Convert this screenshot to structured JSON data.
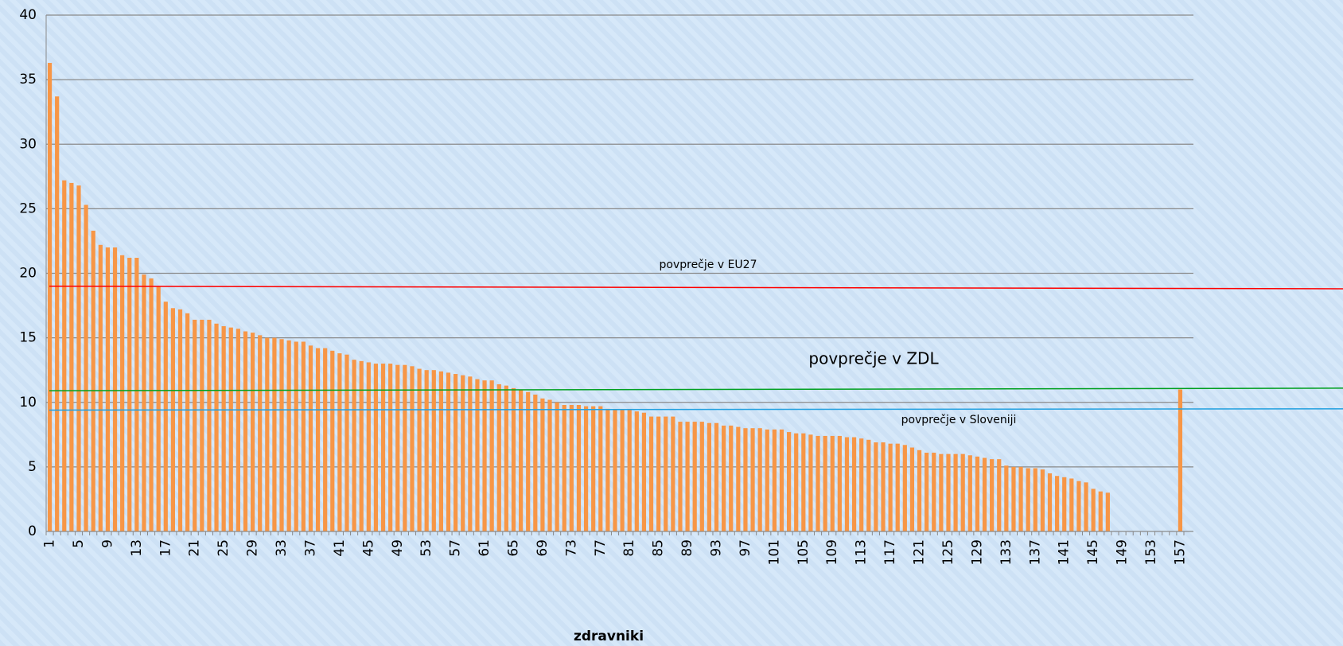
{
  "chart_data": {
    "type": "bar",
    "x_label": "zdravniki",
    "categories": [
      "1",
      null,
      null,
      null,
      "5",
      null,
      null,
      null,
      "9",
      null,
      null,
      null,
      "13",
      null,
      null,
      null,
      "17",
      null,
      null,
      null,
      "21",
      null,
      null,
      null,
      "25",
      null,
      null,
      null,
      "29",
      null,
      null,
      null,
      "33",
      null,
      null,
      null,
      "37",
      null,
      null,
      null,
      "41",
      null,
      null,
      null,
      "45",
      null,
      null,
      null,
      "49",
      null,
      null,
      null,
      "53",
      null,
      null,
      null,
      "57",
      null,
      null,
      null,
      "61",
      null,
      null,
      null,
      "65",
      null,
      null,
      null,
      "69",
      null,
      null,
      null,
      "73",
      null,
      null,
      null,
      "77",
      null,
      null,
      null,
      "81",
      null,
      null,
      null,
      "85",
      null,
      null,
      null,
      "89",
      null,
      null,
      null,
      "93",
      null,
      null,
      null,
      "97",
      null,
      null,
      null,
      "101",
      null,
      null,
      null,
      "105",
      null,
      null,
      null,
      "109",
      null,
      null,
      null,
      "113",
      null,
      null,
      null,
      "117",
      null,
      null,
      null,
      "121",
      null,
      null,
      null,
      "125",
      null,
      null,
      null,
      "129",
      null,
      null,
      null,
      "133",
      null,
      null,
      null,
      "137",
      null,
      null,
      null,
      "141",
      null,
      null,
      null,
      "145",
      null,
      null,
      null,
      "149",
      null,
      null,
      null,
      "153",
      null,
      null,
      null,
      "157"
    ],
    "values": [
      36.3,
      33.7,
      27.2,
      27.0,
      26.8,
      25.3,
      23.3,
      22.2,
      22.0,
      22.0,
      21.4,
      21.2,
      21.2,
      19.9,
      19.6,
      19.0,
      17.8,
      17.3,
      17.2,
      16.9,
      16.4,
      16.4,
      16.4,
      16.1,
      15.9,
      15.8,
      15.7,
      15.5,
      15.4,
      15.2,
      15.0,
      15.0,
      14.9,
      14.8,
      14.7,
      14.7,
      14.4,
      14.2,
      14.2,
      14.0,
      13.8,
      13.7,
      13.3,
      13.2,
      13.1,
      13.0,
      13.0,
      13.0,
      12.9,
      12.9,
      12.8,
      12.6,
      12.5,
      12.5,
      12.4,
      12.3,
      12.2,
      12.1,
      12.0,
      11.8,
      11.7,
      11.7,
      11.4,
      11.3,
      11.1,
      11.0,
      10.8,
      10.6,
      10.3,
      10.2,
      10.0,
      9.8,
      9.8,
      9.8,
      9.7,
      9.7,
      9.7,
      9.5,
      9.4,
      9.4,
      9.4,
      9.3,
      9.2,
      8.9,
      8.9,
      8.9,
      8.9,
      8.5,
      8.5,
      8.5,
      8.5,
      8.4,
      8.4,
      8.2,
      8.2,
      8.1,
      8.0,
      8.0,
      8.0,
      7.9,
      7.9,
      7.9,
      7.7,
      7.6,
      7.6,
      7.5,
      7.4,
      7.4,
      7.4,
      7.4,
      7.3,
      7.3,
      7.2,
      7.1,
      6.9,
      6.9,
      6.8,
      6.8,
      6.7,
      6.5,
      6.3,
      6.1,
      6.1,
      6.0,
      6.0,
      6.0,
      6.0,
      5.9,
      5.8,
      5.7,
      5.6,
      5.6,
      5.1,
      5.0,
      5.0,
      4.9,
      4.9,
      4.8,
      4.5,
      4.3,
      4.2,
      4.1,
      3.9,
      3.8,
      3.3,
      3.1,
      3.0,
      null,
      null,
      null,
      null,
      null,
      null,
      null,
      null,
      null,
      11.0
    ],
    "color": "#f79646",
    "ylim": [
      0,
      40
    ],
    "yticks": [
      0,
      5,
      10,
      15,
      20,
      25,
      30,
      35,
      40
    ],
    "grid": true,
    "reference_lines": [
      {
        "label": "povprečje v EU27",
        "color": "#ff0000",
        "values": [
          19.0,
          18.8
        ]
      },
      {
        "label": "povprečje v ZDL",
        "color": "#00a020",
        "values": [
          10.9,
          11.1
        ]
      },
      {
        "label": "povprečje v Sloveniji",
        "color": "#20a0e0",
        "values": [
          9.4,
          9.5
        ]
      }
    ]
  }
}
